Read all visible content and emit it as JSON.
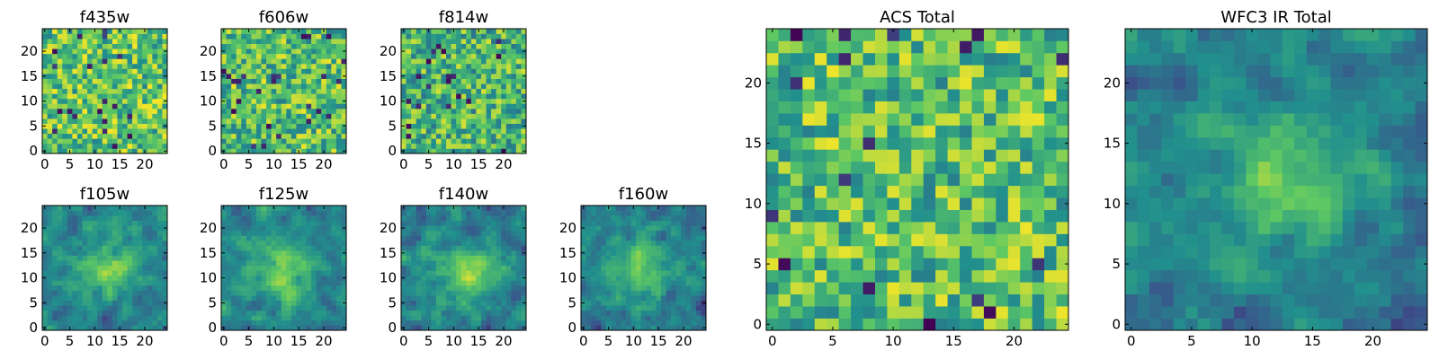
{
  "figure": {
    "description_none": null
  },
  "colormap": {
    "name": "viridis",
    "stops": [
      "#440154",
      "#3b528b",
      "#21908d",
      "#5dc863",
      "#fde725"
    ]
  },
  "chart_data": [
    {
      "type": "heatmap",
      "title": "f435w",
      "image_size": [
        25,
        25
      ],
      "xlim": [
        -0.5,
        24.5
      ],
      "ylim": [
        -0.5,
        24.5
      ],
      "xticks": [
        0,
        5,
        10,
        15,
        20
      ],
      "yticks": [
        0,
        5,
        10,
        15,
        20
      ],
      "pattern": "uniform noise",
      "value_range": [
        0,
        1
      ],
      "mean_level": 0.72,
      "seed": 11
    },
    {
      "type": "heatmap",
      "title": "f606w",
      "image_size": [
        25,
        25
      ],
      "xlim": [
        -0.5,
        24.5
      ],
      "ylim": [
        -0.5,
        24.5
      ],
      "xticks": [
        0,
        5,
        10,
        15,
        20
      ],
      "yticks": [
        0,
        5,
        10,
        15,
        20
      ],
      "pattern": "uniform noise",
      "value_range": [
        0,
        1
      ],
      "mean_level": 0.7,
      "seed": 23
    },
    {
      "type": "heatmap",
      "title": "f814w",
      "image_size": [
        25,
        25
      ],
      "xlim": [
        -0.5,
        24.5
      ],
      "ylim": [
        -0.5,
        24.5
      ],
      "xticks": [
        0,
        5,
        10,
        15,
        20
      ],
      "yticks": [
        0,
        5,
        10,
        15,
        20
      ],
      "pattern": "uniform noise",
      "value_range": [
        0,
        1
      ],
      "mean_level": 0.66,
      "seed": 37
    },
    {
      "type": "heatmap",
      "title": "f105w",
      "image_size": [
        25,
        25
      ],
      "xlim": [
        -0.5,
        24.5
      ],
      "ylim": [
        -0.5,
        24.5
      ],
      "xticks": [
        0,
        5,
        10,
        15,
        20
      ],
      "yticks": [
        0,
        5,
        10,
        15,
        20
      ],
      "pattern": "central source plus noise",
      "source_center": [
        13,
        12
      ],
      "value_range": [
        0,
        1
      ],
      "mean_level": 0.58,
      "seed": 41
    },
    {
      "type": "heatmap",
      "title": "f125w",
      "image_size": [
        25,
        25
      ],
      "xlim": [
        -0.5,
        24.5
      ],
      "ylim": [
        -0.5,
        24.5
      ],
      "xticks": [
        0,
        5,
        10,
        15,
        20
      ],
      "yticks": [
        0,
        5,
        10,
        15,
        20
      ],
      "pattern": "central source plus noise",
      "source_center": [
        12,
        11
      ],
      "value_range": [
        0,
        1
      ],
      "mean_level": 0.6,
      "seed": 53
    },
    {
      "type": "heatmap",
      "title": "f140w",
      "image_size": [
        25,
        25
      ],
      "xlim": [
        -0.5,
        24.5
      ],
      "ylim": [
        -0.5,
        24.5
      ],
      "xticks": [
        0,
        5,
        10,
        15,
        20
      ],
      "yticks": [
        0,
        5,
        10,
        15,
        20
      ],
      "pattern": "central source plus noise",
      "source_center": [
        13,
        11
      ],
      "value_range": [
        0,
        1
      ],
      "mean_level": 0.58,
      "seed": 67
    },
    {
      "type": "heatmap",
      "title": "f160w",
      "image_size": [
        25,
        25
      ],
      "xlim": [
        -0.5,
        24.5
      ],
      "ylim": [
        -0.5,
        24.5
      ],
      "xticks": [
        0,
        5,
        10,
        15,
        20
      ],
      "yticks": [
        0,
        5,
        10,
        15,
        20
      ],
      "pattern": "central source plus noise",
      "source_center": [
        11,
        12
      ],
      "value_range": [
        0,
        1
      ],
      "mean_level": 0.56,
      "seed": 79
    },
    {
      "type": "heatmap",
      "title": "ACS Total",
      "image_size": [
        25,
        25
      ],
      "xlim": [
        -0.5,
        24.5
      ],
      "ylim": [
        -0.5,
        24.5
      ],
      "xticks": [
        0,
        5,
        10,
        15,
        20
      ],
      "yticks": [
        0,
        5,
        10,
        15,
        20
      ],
      "pattern": "summed noise",
      "value_range": [
        0,
        1
      ],
      "mean_level": 0.7,
      "seed": 97
    },
    {
      "type": "heatmap",
      "title": "WFC3 IR Total",
      "image_size": [
        25,
        25
      ],
      "xlim": [
        -0.5,
        24.5
      ],
      "ylim": [
        -0.5,
        24.5
      ],
      "xticks": [
        0,
        5,
        10,
        15,
        20
      ],
      "yticks": [
        0,
        5,
        10,
        15,
        20
      ],
      "pattern": "central source plus noise",
      "source_center": [
        13,
        12
      ],
      "value_range": [
        0,
        1
      ],
      "mean_level": 0.55,
      "seed": 113
    }
  ]
}
